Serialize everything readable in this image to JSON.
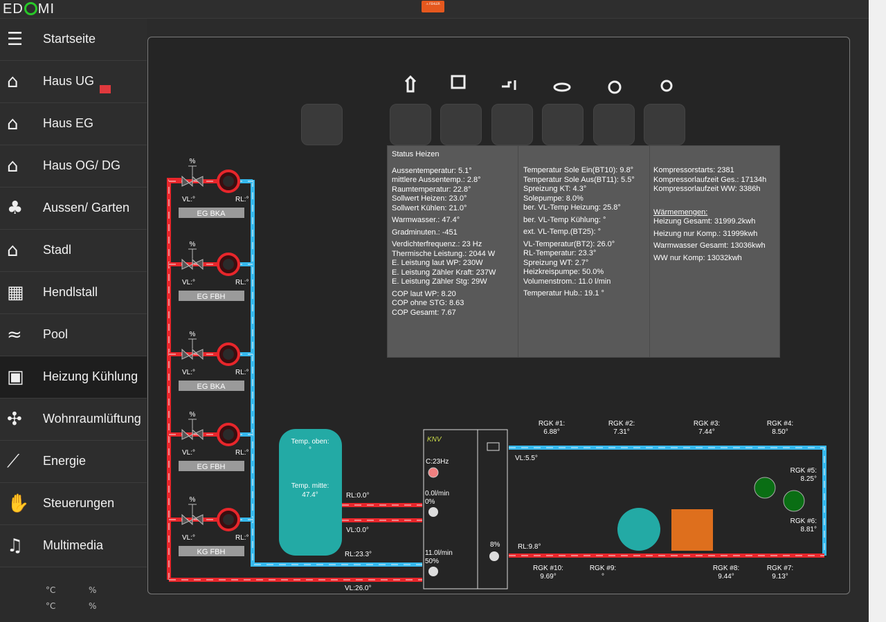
{
  "header": {
    "logo_text_a": "ED",
    "logo_text_b": "MI",
    "error_badge": "⚠ FEHLER"
  },
  "sidebar": {
    "items": [
      {
        "label": "Startseite",
        "icon": "list-icon"
      },
      {
        "label": "Haus UG",
        "icon": "house-icon"
      },
      {
        "label": "Haus EG",
        "icon": "house-icon"
      },
      {
        "label": "Haus OG/ DG",
        "icon": "house-icon"
      },
      {
        "label": "Aussen/ Garten",
        "icon": "tree-icon"
      },
      {
        "label": "Stadl",
        "icon": "barn-icon"
      },
      {
        "label": "Hendlstall",
        "icon": "qrcode-icon"
      },
      {
        "label": "Pool",
        "icon": "swimmer-icon"
      },
      {
        "label": "Heizung Kühlung",
        "icon": "heater-icon"
      },
      {
        "label": "Wohnraumlüftung",
        "icon": "fan-icon"
      },
      {
        "label": "Energie",
        "icon": "chart-icon"
      },
      {
        "label": "Steuerungen",
        "icon": "hand-icon"
      },
      {
        "label": "Multimedia",
        "icon": "music-icon"
      }
    ],
    "active_index": 8,
    "stats": {
      "unit_c1": "°C",
      "unit_p1": "%",
      "unit_c2": "°C",
      "unit_p2": "%"
    }
  },
  "status": {
    "title": "Status Heizen",
    "col1": [
      [
        "Aussentemperatur: 5.1°",
        "mittlere Aussentemp.: 2.8°",
        "Raumtemperatur: 22.8°",
        "Sollwert Heizen: 23.0°",
        "Sollwert Kühlen: 21.0°"
      ],
      [
        "Warmwasser.: 47.4°"
      ],
      [
        "Gradminuten.: -451"
      ],
      [
        "Verdichterfrequenz.: 23 Hz",
        "Thermische Leistung.: 2044 W",
        "E. Leistung laut WP: 230W",
        "E. Leistung Zähler Kraft: 237W",
        "E. Leistung Zähler Stg: 29W"
      ],
      [
        "COP laut WP: 8.20",
        "COP ohne STG: 8.63",
        "COP Gesamt: 7.67"
      ]
    ],
    "col2": [
      [
        "Temperatur Sole Ein(BT10): 9.8°",
        "Temperatur Sole Aus(BT11): 5.5°",
        "Spreizung KT: 4.3°",
        "Solepumpe: 8.0%",
        "ber. VL-Temp Heizung: 25.8°"
      ],
      [
        "ber. VL-Temp Kühlung: °"
      ],
      [
        "ext. VL-Temp.(BT25): °"
      ],
      [
        "VL-Temperatur(BT2): 26.0°",
        "RL-Temperatur: 23.3°",
        "Spreizung WT: 2.7°",
        "Heizkreispumpe: 50.0%",
        "Volumenstrom.: 11.0 l/min"
      ],
      [
        "Temperatur Hub.: 19.1 °"
      ]
    ],
    "col3": [
      [
        "Kompressorstarts: 2381",
        "Kompressorlaufzeit Ges.: 17134h",
        "Kompressorlaufzeit WW: 3386h"
      ],
      [
        "Wärmemengen:",
        "Heizung Gesamt: 31999.2kwh"
      ],
      [
        "Heizung nur Komp.: 31999kwh"
      ],
      [
        "Warmwasser Gesamt: 13036kwh"
      ],
      [
        "WW nur Komp: 13032kwh"
      ]
    ]
  },
  "circuits": [
    {
      "name": "EG BKA",
      "percent": "%",
      "vl": "VL:°",
      "rl": "RL:°"
    },
    {
      "name": "EG FBH",
      "percent": "%",
      "vl": "VL:°",
      "rl": "RL:°"
    },
    {
      "name": "EG BKA",
      "percent": "%",
      "vl": "VL:°",
      "rl": "RL:°"
    },
    {
      "name": "EG FBH",
      "percent": "%",
      "vl": "VL:°",
      "rl": "RL:°"
    },
    {
      "name": "KG FBH",
      "percent": "%",
      "vl": "VL:°",
      "rl": "RL:°"
    }
  ],
  "tank": {
    "top_label": "Temp. oben:",
    "top_value": "°",
    "mid_label": "Temp. mitte:",
    "mid_value": "47.4°"
  },
  "pipes": {
    "rl_tank": "RL:0.0°",
    "vl_tank": "VL:0.0°",
    "rl_main": "RL:23.3°",
    "vl_main": "VL:26.0°",
    "vl_ground": "VL:5.5°",
    "rl_ground": "RL:9.8°"
  },
  "heatpump": {
    "brand": "KNV",
    "comp_freq": "C:23Hz",
    "flow1": "0.0l/min",
    "pct1": "0%",
    "flow2": "11.0l/min",
    "pct2": "50%",
    "brine_pct": "8%"
  },
  "rgk": [
    {
      "label": "RGK #1:",
      "value": "6.88°"
    },
    {
      "label": "RGK #2:",
      "value": "7.31°"
    },
    {
      "label": "RGK #3:",
      "value": "7.44°"
    },
    {
      "label": "RGK #4:",
      "value": "8.50°"
    },
    {
      "label": "RGK #5:",
      "value": "8.25°"
    },
    {
      "label": "RGK #6:",
      "value": "8.81°"
    },
    {
      "label": "RGK #7:",
      "value": "9.13°"
    },
    {
      "label": "RGK #8:",
      "value": "9.44°"
    },
    {
      "label": "RGK #9:",
      "value": "°"
    },
    {
      "label": "RGK #10:",
      "value": "9.69°"
    }
  ],
  "colors": {
    "hot": "#e8262b",
    "cold": "#35b8ec",
    "tank": "#23aaa5",
    "green": "#0a6e14",
    "orange": "#de6f1d"
  }
}
